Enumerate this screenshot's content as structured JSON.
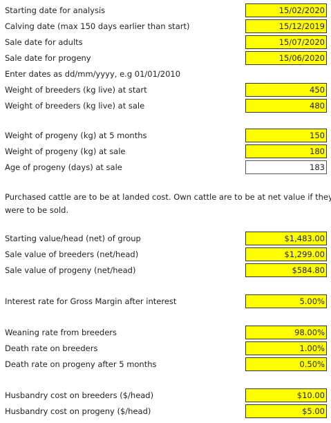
{
  "fields": [
    {
      "label": "Starting date for analysis",
      "value": "15/02/2020"
    },
    {
      "label": "Calving date (max 150 days earlier than start)",
      "value": "15/12/2019"
    },
    {
      "label": "Sale date for adults",
      "value": "15/07/2020"
    },
    {
      "label": "Sale date for progeny",
      "value": "15/06/2020"
    },
    {
      "label": "Enter dates as dd/mm/yyyy, e.g 01/01/2010"
    },
    {
      "label": "Weight of breeders (kg live) at start",
      "value": "450"
    },
    {
      "label": "Weight of breeders (kg live) at sale",
      "value": "480"
    },
    {
      "label": "Weight of progeny (kg) at 5 months",
      "value": "150"
    },
    {
      "label": "Weight of progeny (kg) at sale",
      "value": "180"
    },
    {
      "label": "Age of progeny (days) at sale",
      "value": "183"
    },
    {
      "label": "Starting value/head (net) of group",
      "value": "$1,483.00"
    },
    {
      "label": "Sale value of breeders (net/head)",
      "value": "$1,299.00"
    },
    {
      "label": "Sale value of progeny (net/head)",
      "value": "$584.80"
    },
    {
      "label": "Interest rate for Gross Margin after interest",
      "value": "5.00%"
    },
    {
      "label": "Weaning rate from breeders",
      "value": "98.00%"
    },
    {
      "label": "Death rate on breeders",
      "value": "1.00%"
    },
    {
      "label": "Death rate on progeny after 5 months",
      "value": "0.50%"
    },
    {
      "label": "Husbandry cost on breeders ($/head)",
      "value": "$10.00"
    },
    {
      "label": "Husbandry cost on progeny ($/head)",
      "value": "$5.00"
    }
  ],
  "note": {
    "lines": [
      "Purchased cattle are to be at landed cost. Own cattle are to be at net value if they",
      "were to be sold."
    ]
  }
}
